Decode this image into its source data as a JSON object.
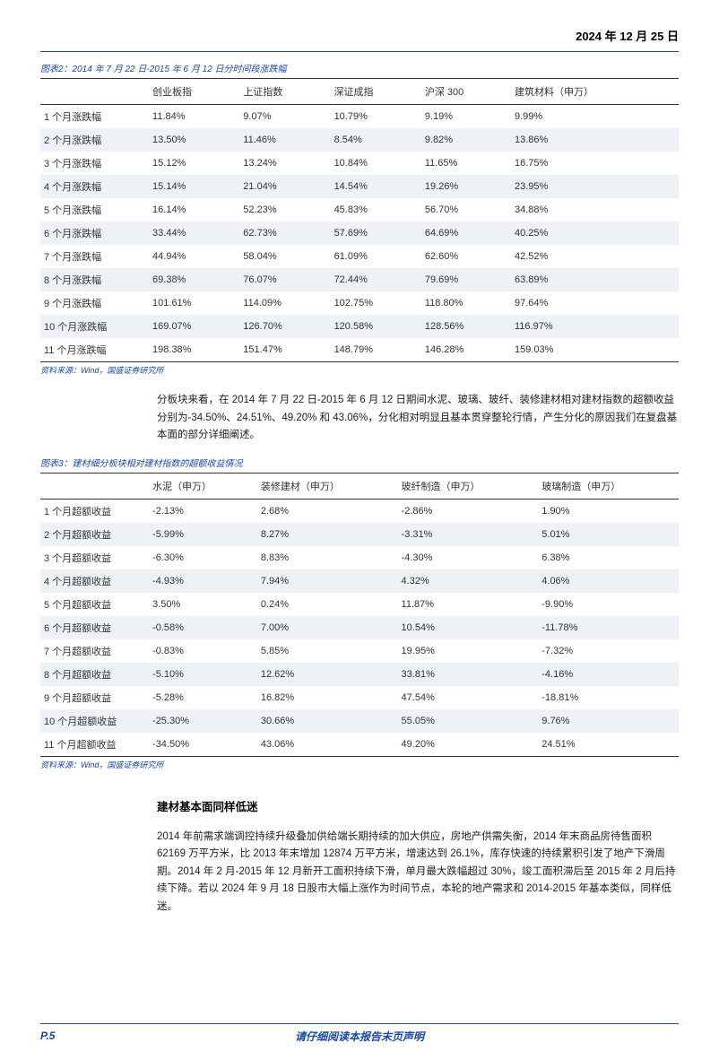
{
  "header": {
    "date": "2024 年 12 月 25 日"
  },
  "table1": {
    "caption": "图表2：2014 年 7 月 22 日-2015 年 6 月 12 日分时间段涨跌幅",
    "columns": [
      "",
      "创业板指",
      "上证指数",
      "深证成指",
      "沪深 300",
      "建筑材料（申万）"
    ],
    "rows": [
      [
        "1 个月涨跌幅",
        "11.84%",
        "9.07%",
        "10.79%",
        "9.19%",
        "9.99%"
      ],
      [
        "2 个月涨跌幅",
        "13.50%",
        "11.46%",
        "8.54%",
        "9.82%",
        "13.86%"
      ],
      [
        "3 个月涨跌幅",
        "15.12%",
        "13.24%",
        "10.84%",
        "11.65%",
        "16.75%"
      ],
      [
        "4 个月涨跌幅",
        "15.14%",
        "21.04%",
        "14.54%",
        "19.26%",
        "23.95%"
      ],
      [
        "5 个月涨跌幅",
        "16.14%",
        "52.23%",
        "45.83%",
        "56.70%",
        "34.88%"
      ],
      [
        "6 个月涨跌幅",
        "33.44%",
        "62.73%",
        "57.69%",
        "64.69%",
        "40.25%"
      ],
      [
        "7 个月涨跌幅",
        "44.94%",
        "58.04%",
        "61.09%",
        "62.60%",
        "42.52%"
      ],
      [
        "8 个月涨跌幅",
        "69.38%",
        "76.07%",
        "72.44%",
        "79.69%",
        "63.89%"
      ],
      [
        "9 个月涨跌幅",
        "101.61%",
        "114.09%",
        "102.75%",
        "118.80%",
        "97.64%"
      ],
      [
        "10 个月涨跌幅",
        "169.07%",
        "126.70%",
        "120.58%",
        "128.56%",
        "116.97%"
      ],
      [
        "11 个月涨跌幅",
        "198.38%",
        "151.47%",
        "148.79%",
        "146.28%",
        "159.03%"
      ]
    ],
    "source": "资料来源：Wind，国盛证券研究所"
  },
  "para1": "分板块来看，在 2014 年 7 月 22 日-2015 年 6 月 12 日期间水泥、玻璃、玻纤、装修建材相对建材指数的超额收益分别为-34.50%、24.51%、49.20% 和 43.06%，分化相对明显且基本贯穿整轮行情，产生分化的原因我们在复盘基本面的部分详细阐述。",
  "table2": {
    "caption": "图表3：建材细分板块相对建材指数的超额收益情况",
    "columns": [
      "",
      "水泥（申万）",
      "装修建材（申万）",
      "玻纤制造（申万）",
      "玻璃制造（申万）"
    ],
    "rows": [
      [
        "1 个月超额收益",
        "-2.13%",
        "2.68%",
        "-2.86%",
        "1.90%"
      ],
      [
        "2 个月超额收益",
        "-5.99%",
        "8.27%",
        "-3.31%",
        "5.01%"
      ],
      [
        "3 个月超额收益",
        "-6.30%",
        "8.83%",
        "-4.30%",
        "6.38%"
      ],
      [
        "4 个月超额收益",
        "-4.93%",
        "7.94%",
        "4.32%",
        "4.06%"
      ],
      [
        "5 个月超额收益",
        "3.50%",
        "0.24%",
        "11.87%",
        "-9.90%"
      ],
      [
        "6 个月超额收益",
        "-0.58%",
        "7.00%",
        "10.54%",
        "-11.78%"
      ],
      [
        "7 个月超额收益",
        "-0.83%",
        "5.85%",
        "19.95%",
        "-7.32%"
      ],
      [
        "8 个月超额收益",
        "-5.10%",
        "12.62%",
        "33.81%",
        "-4.16%"
      ],
      [
        "9 个月超额收益",
        "-5.28%",
        "16.82%",
        "47.54%",
        "-18.81%"
      ],
      [
        "10 个月超额收益",
        "-25.30%",
        "30.66%",
        "55.05%",
        "9.76%"
      ],
      [
        "11 个月超额收益",
        "-34.50%",
        "43.06%",
        "49.20%",
        "24.51%"
      ]
    ],
    "source": "资料来源：Wind，国盛证券研究所"
  },
  "section_title": "建材基本面同样低迷",
  "para2": "2014 年前需求端调控持续升级叠加供给端长期持续的加大供应，房地产供需失衡，2014 年末商品房待售面积 62169 万平方米，比 2013 年末增加 12874 万平方米，增速达到 26.1%，库存快速的持续累积引发了地产下滑周期。2014 年 2 月-2015 年 12 月新开工面积持续下滑，单月最大跌幅超过 30%，竣工面积滞后至 2015 年 2 月后持续下降。若以 2024 年 9 月 18 日股市大幅上涨作为时间节点，本轮的地产需求和 2014-2015 年基本类似，同样低迷。",
  "footer": {
    "page": "P.5",
    "note": "请仔细阅读本报告末页声明"
  }
}
